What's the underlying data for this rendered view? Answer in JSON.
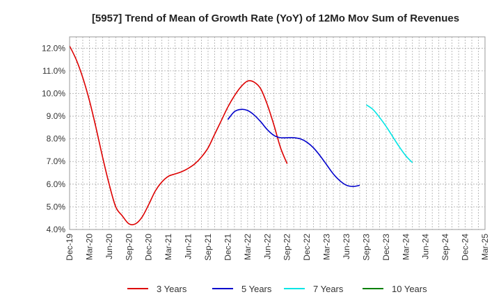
{
  "chart_data": {
    "type": "line",
    "title": "[5957]  Trend of Mean of Growth Rate (YoY) of 12Mo Mov Sum of Revenues",
    "xlabel": "",
    "ylabel": "",
    "ylim": [
      4.0,
      12.5
    ],
    "grid": true,
    "legend_position": "bottom",
    "x_tick_labels": [
      "Dec-19",
      "Mar-20",
      "Jun-20",
      "Sep-20",
      "Dec-20",
      "Mar-21",
      "Jun-21",
      "Sep-21",
      "Dec-21",
      "Mar-22",
      "Jun-22",
      "Sep-22",
      "Dec-22",
      "Mar-23",
      "Jun-23",
      "Sep-23",
      "Dec-23",
      "Mar-24",
      "Jun-24",
      "Sep-24",
      "Dec-24",
      "Mar-25"
    ],
    "y_tick_values": [
      4.0,
      5.0,
      6.0,
      7.0,
      8.0,
      9.0,
      10.0,
      11.0,
      12.0
    ],
    "y_tick_labels": [
      "4.0%",
      "5.0%",
      "6.0%",
      "7.0%",
      "8.0%",
      "9.0%",
      "10.0%",
      "11.0%",
      "12.0%"
    ],
    "series": [
      {
        "name": "3 Years",
        "color": "#dd0000",
        "start_index": 0,
        "values": [
          12.1,
          11.5,
          10.7,
          9.7,
          8.5,
          7.2,
          6.0,
          5.0,
          4.6,
          4.25,
          4.25,
          4.55,
          5.1,
          5.7,
          6.1,
          6.35,
          6.45,
          6.55,
          6.7,
          6.9,
          7.2,
          7.6,
          8.2,
          8.8,
          9.4,
          9.9,
          10.3,
          10.55,
          10.5,
          10.2,
          9.5,
          8.6,
          7.6,
          6.9
        ]
      },
      {
        "name": "5 Years",
        "color": "#0000cc",
        "start_index": 24,
        "values": [
          8.85,
          9.2,
          9.3,
          9.25,
          9.05,
          8.75,
          8.4,
          8.15,
          8.05,
          8.05,
          8.05,
          8.0,
          7.85,
          7.6,
          7.25,
          6.85,
          6.45,
          6.15,
          5.95,
          5.9,
          5.95
        ]
      },
      {
        "name": "7 Years",
        "color": "#00e5e5",
        "start_index": 45,
        "values": [
          9.5,
          9.3,
          8.95,
          8.55,
          8.1,
          7.65,
          7.25,
          6.95
        ]
      },
      {
        "name": "10 Years",
        "color": "#008000",
        "start_index": 0,
        "values": []
      }
    ]
  }
}
